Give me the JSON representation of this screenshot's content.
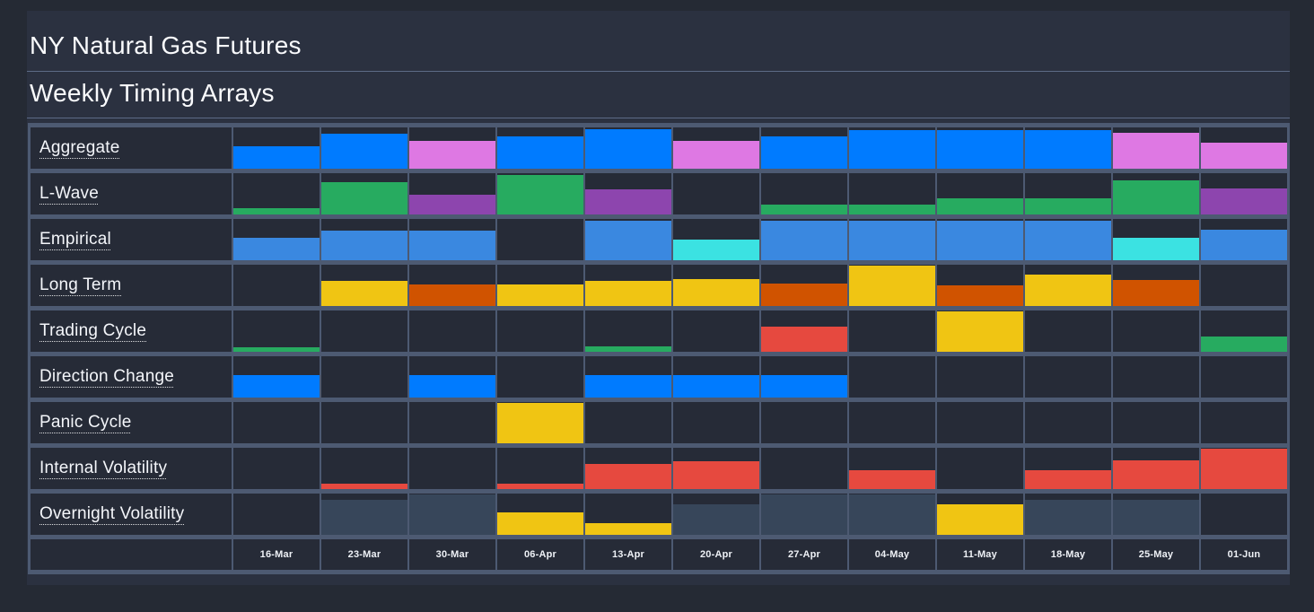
{
  "header": {
    "title": "NY Natural Gas Futures",
    "subtitle": "Weekly Timing Arrays"
  },
  "colors": {
    "blue": "#007bff",
    "softblue": "#3a88e0",
    "cyan": "#3be2e2",
    "orchid": "#de78e3",
    "purple": "#8d45ae",
    "green": "#27ab60",
    "yellow": "#f0c513",
    "orange": "#d05300",
    "red": "#e6493f",
    "slate": "#37465a"
  },
  "chart_data": {
    "type": "bar",
    "note": "Matrix of bottom-anchored bars; height is fraction of row height, color is a key into colors map",
    "categories": [
      "16-Mar",
      "23-Mar",
      "30-Mar",
      "06-Apr",
      "13-Apr",
      "20-Apr",
      "27-Apr",
      "04-May",
      "11-May",
      "18-May",
      "25-May",
      "01-Jun"
    ],
    "series": [
      {
        "name": "Aggregate",
        "cells": [
          {
            "color": "blue",
            "height": 0.55
          },
          {
            "color": "blue",
            "height": 0.85
          },
          {
            "color": "orchid",
            "height": 0.68
          },
          {
            "color": "blue",
            "height": 0.78
          },
          {
            "color": "blue",
            "height": 0.95
          },
          {
            "color": "orchid",
            "height": 0.68
          },
          {
            "color": "blue",
            "height": 0.78
          },
          {
            "color": "blue",
            "height": 0.93
          },
          {
            "color": "blue",
            "height": 0.93
          },
          {
            "color": "blue",
            "height": 0.93
          },
          {
            "color": "orchid",
            "height": 0.88
          },
          {
            "color": "orchid",
            "height": 0.62
          }
        ]
      },
      {
        "name": "L-Wave",
        "cells": [
          {
            "color": "green",
            "height": 0.15
          },
          {
            "color": "green",
            "height": 0.78
          },
          {
            "color": "purple",
            "height": 0.48
          },
          {
            "color": "green",
            "height": 0.95
          },
          {
            "color": "purple",
            "height": 0.6
          },
          null,
          {
            "color": "green",
            "height": 0.25
          },
          {
            "color": "green",
            "height": 0.25
          },
          {
            "color": "green",
            "height": 0.4
          },
          {
            "color": "green",
            "height": 0.4
          },
          {
            "color": "green",
            "height": 0.82
          },
          {
            "color": "purple",
            "height": 0.62
          }
        ]
      },
      {
        "name": "Empirical",
        "cells": [
          {
            "color": "softblue",
            "height": 0.55
          },
          {
            "color": "softblue",
            "height": 0.72
          },
          {
            "color": "softblue",
            "height": 0.72
          },
          null,
          {
            "color": "softblue",
            "height": 0.95
          },
          {
            "color": "cyan",
            "height": 0.5
          },
          {
            "color": "softblue",
            "height": 0.95
          },
          {
            "color": "softblue",
            "height": 0.95
          },
          {
            "color": "softblue",
            "height": 0.95
          },
          {
            "color": "softblue",
            "height": 0.95
          },
          {
            "color": "cyan",
            "height": 0.55
          },
          {
            "color": "softblue",
            "height": 0.75
          }
        ]
      },
      {
        "name": "Long Term",
        "cells": [
          null,
          {
            "color": "yellow",
            "height": 0.6
          },
          {
            "color": "orange",
            "height": 0.52
          },
          {
            "color": "yellow",
            "height": 0.52
          },
          {
            "color": "yellow",
            "height": 0.6
          },
          {
            "color": "yellow",
            "height": 0.65
          },
          {
            "color": "orange",
            "height": 0.55
          },
          {
            "color": "yellow",
            "height": 0.97
          },
          {
            "color": "orange",
            "height": 0.5
          },
          {
            "color": "yellow",
            "height": 0.77
          },
          {
            "color": "orange",
            "height": 0.62
          },
          null
        ]
      },
      {
        "name": "Trading Cycle",
        "cells": [
          {
            "color": "green",
            "height": 0.1
          },
          null,
          null,
          null,
          {
            "color": "green",
            "height": 0.12
          },
          null,
          {
            "color": "red",
            "height": 0.6
          },
          null,
          {
            "color": "yellow",
            "height": 0.97
          },
          null,
          null,
          {
            "color": "green",
            "height": 0.38
          }
        ]
      },
      {
        "name": "Direction Change",
        "cells": [
          {
            "color": "blue",
            "height": 0.55
          },
          null,
          {
            "color": "blue",
            "height": 0.55
          },
          null,
          {
            "color": "blue",
            "height": 0.55
          },
          {
            "color": "blue",
            "height": 0.55
          },
          {
            "color": "blue",
            "height": 0.55
          },
          null,
          null,
          null,
          null,
          null
        ]
      },
      {
        "name": "Panic Cycle",
        "cells": [
          null,
          null,
          null,
          {
            "color": "yellow",
            "height": 0.97
          },
          null,
          null,
          null,
          null,
          null,
          null,
          null,
          null
        ]
      },
      {
        "name": "Internal Volatility",
        "cells": [
          null,
          {
            "color": "red",
            "height": 0.12
          },
          null,
          {
            "color": "red",
            "height": 0.12
          },
          {
            "color": "red",
            "height": 0.6
          },
          {
            "color": "red",
            "height": 0.68
          },
          null,
          {
            "color": "red",
            "height": 0.45
          },
          null,
          {
            "color": "red",
            "height": 0.45
          },
          {
            "color": "red",
            "height": 0.7
          },
          {
            "color": "red",
            "height": 0.97
          }
        ]
      },
      {
        "name": "Overnight Volatility",
        "cells": [
          null,
          {
            "color": "slate",
            "height": 0.85
          },
          {
            "color": "slate",
            "height": 0.97
          },
          {
            "color": "yellow",
            "height": 0.55
          },
          {
            "color": "yellow",
            "height": 0.28
          },
          {
            "color": "slate",
            "height": 0.73
          },
          {
            "color": "slate",
            "height": 0.97
          },
          {
            "color": "slate",
            "height": 0.97
          },
          {
            "color": "yellow",
            "height": 0.73
          },
          {
            "color": "slate",
            "height": 0.85
          },
          {
            "color": "slate",
            "height": 0.85
          },
          null
        ]
      }
    ]
  }
}
